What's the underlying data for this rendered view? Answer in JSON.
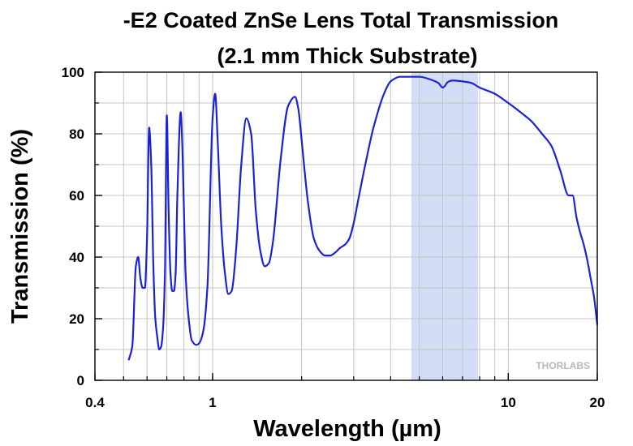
{
  "chart_data": {
    "type": "line",
    "title_line1": "-E2 Coated ZnSe Lens Total Transmission",
    "title_line2": "(2.1 mm Thick Substrate)",
    "xlabel": "Wavelength (µm)",
    "ylabel": "Transmission (%)",
    "xscale": "log",
    "xlim": [
      0.4,
      20
    ],
    "ylim": [
      0,
      100
    ],
    "x_ticks": [
      0.4,
      1,
      10,
      20
    ],
    "x_tick_labels": [
      "0.4",
      "1",
      "10",
      "20"
    ],
    "y_ticks": [
      0,
      20,
      40,
      60,
      80,
      100
    ],
    "y_tick_labels": [
      "0",
      "20",
      "40",
      "60",
      "80",
      "100"
    ],
    "grid": true,
    "shaded_band": {
      "x_start": 4.7,
      "x_end": 7.9,
      "color": "#d3ddf5"
    },
    "line_color": "#1a22d4",
    "watermark": "THORLABS",
    "series": [
      {
        "x": [
          0.52,
          0.535,
          0.55,
          0.56,
          0.57,
          0.58,
          0.59,
          0.6,
          0.61,
          0.62,
          0.63,
          0.64,
          0.65,
          0.66,
          0.67,
          0.68,
          0.69,
          0.7,
          0.71,
          0.72,
          0.73,
          0.74,
          0.75,
          0.76,
          0.78,
          0.79,
          0.8,
          0.81,
          0.83,
          0.85,
          0.88,
          0.9,
          0.93,
          0.96,
          1.0,
          1.02,
          1.04,
          1.07,
          1.1,
          1.13,
          1.16,
          1.2,
          1.25,
          1.3,
          1.35,
          1.4,
          1.45,
          1.5,
          1.55,
          1.6,
          1.7,
          1.8,
          1.9,
          1.95,
          2.0,
          2.1,
          2.2,
          2.3,
          2.4,
          2.5,
          2.6,
          2.7,
          2.8,
          2.9,
          3.0,
          3.1,
          3.3,
          3.5,
          3.8,
          4.0,
          4.3,
          4.5,
          5.0,
          5.5,
          5.8,
          6.0,
          6.1,
          6.2,
          6.3,
          6.5,
          7.0,
          7.5,
          8.0,
          9.0,
          10.0,
          11.0,
          12.0,
          13.0,
          14.0,
          15.0,
          16.0,
          16.5,
          17.0,
          17.5,
          18.0,
          18.5,
          19.0,
          19.5,
          20.0
        ],
        "values": [
          6.5,
          11,
          37,
          40,
          33,
          30,
          30,
          46,
          82,
          70,
          38,
          20,
          14,
          10,
          11,
          17,
          35,
          86,
          55,
          35,
          29,
          29,
          35,
          60,
          87,
          76,
          55,
          35,
          20,
          13,
          11.5,
          12,
          16,
          30,
          85,
          93,
          78,
          50,
          35,
          28,
          29,
          42,
          70,
          85,
          80,
          55,
          42,
          37,
          38,
          45,
          72,
          89,
          92,
          88,
          78,
          58,
          46,
          42,
          40.5,
          40.5,
          41.5,
          43,
          44,
          46,
          51,
          58,
          71,
          82,
          93,
          97,
          98.5,
          98.5,
          98.5,
          97.5,
          96.5,
          95,
          95.5,
          96.5,
          97,
          97.3,
          97,
          96.5,
          95,
          93,
          90,
          87,
          84,
          80,
          76,
          68,
          60,
          60,
          53,
          48,
          44,
          39,
          33,
          27,
          18
        ]
      }
    ]
  }
}
